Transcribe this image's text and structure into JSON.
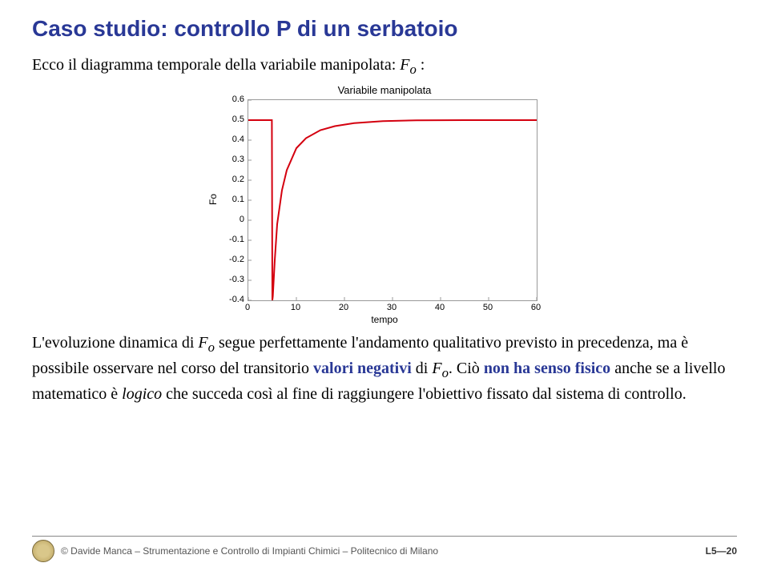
{
  "title": "Caso studio: controllo P di un serbatoio",
  "subtitle_pre": "Ecco il diagramma temporale della variabile manipolata: ",
  "subtitle_var": "F",
  "subtitle_sub": "o",
  "subtitle_post": " :",
  "chart": {
    "type": "line",
    "title": "Variabile manipolata",
    "ylabel": "Fo",
    "xlabel": "tempo",
    "xlim": [
      0,
      60
    ],
    "ylim": [
      -0.4,
      0.6
    ],
    "xticks": [
      0,
      10,
      20,
      30,
      40,
      50,
      60
    ],
    "yticks": [
      -0.4,
      -0.3,
      -0.2,
      -0.1,
      0,
      0.1,
      0.2,
      0.3,
      0.4,
      0.5,
      0.6
    ],
    "line_color": "#d4000f",
    "line_width": 2,
    "border_color": "#999999",
    "background_color": "#ffffff",
    "series": {
      "x": [
        0,
        4.9,
        5,
        5.1,
        5.5,
        6,
        7,
        8,
        10,
        12,
        15,
        18,
        22,
        28,
        35,
        45,
        60
      ],
      "y": [
        0.5,
        0.5,
        -0.4,
        -0.38,
        -0.2,
        -0.02,
        0.15,
        0.25,
        0.36,
        0.41,
        0.45,
        0.47,
        0.485,
        0.495,
        0.499,
        0.5,
        0.5
      ]
    }
  },
  "para": {
    "p1a": "L'evoluzione dinamica di ",
    "p1var": "F",
    "p1sub": "o",
    "p1b": " segue perfettamente l'andamento qualitativo previsto in precedenza, ma è possibile osservare nel corso del transitorio ",
    "valneg": "valori negativi",
    "p1c": " di ",
    "p1var2": "F",
    "p1sub2": "o",
    "p1d": ". Ciò ",
    "nonsenso": "non ha senso fisico",
    "p1e": " anche se a livello matematico è ",
    "logico": "logico",
    "p1f": " che succeda così al fine di raggiungere l'obiettivo fissato dal sistema di controllo."
  },
  "footer": {
    "copyright": "© Davide Manca – Strumentazione e Controllo di Impianti Chimici – Politecnico di Milano",
    "slide": "L5—20"
  }
}
